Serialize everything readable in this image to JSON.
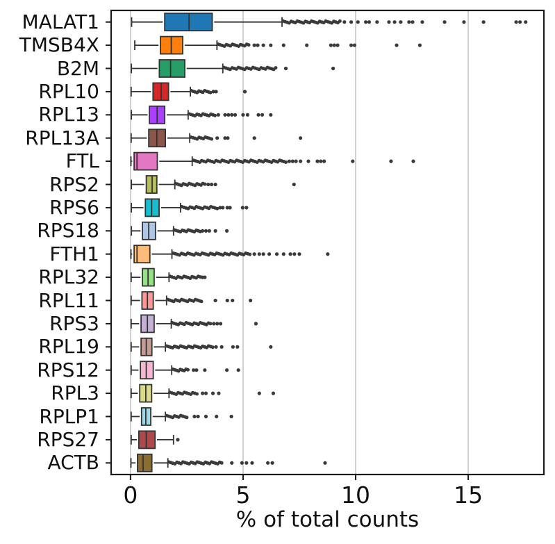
{
  "chart_data": {
    "type": "horizontal_boxplot",
    "title": "",
    "xlabel": "% of total counts",
    "ylabel": "",
    "xticks": [
      0,
      5,
      10,
      15
    ],
    "xtick_labels": [
      "0",
      "5",
      "10",
      "15"
    ],
    "xlim": [
      -0.86,
      18.36
    ],
    "grid": "vertical gridlines at each x tick",
    "legend": "none",
    "genes": [
      {
        "name": "MALAT1",
        "color": "#1f77b4",
        "whisker_low": 0.05,
        "q1": 1.52,
        "median": 2.6,
        "q3": 3.63,
        "whisker_high": 6.73,
        "outlier_band": [
          6.78,
          9.3
        ],
        "outliers": [
          9.5,
          9.8,
          10.1,
          10.45,
          10.6,
          10.95,
          11.48,
          11.73,
          12.0,
          12.37,
          12.53,
          12.96,
          13.95,
          14.81,
          15.68,
          17.13,
          17.3,
          17.55
        ]
      },
      {
        "name": "TMSB4X",
        "color": "#ff7f0e",
        "whisker_low": 0.19,
        "q1": 1.33,
        "median": 1.81,
        "q3": 2.32,
        "whisker_high": 3.84,
        "outlier_band": [
          3.9,
          5.25
        ],
        "outliers": [
          5.5,
          5.65,
          5.9,
          6.23,
          6.8,
          7.83,
          8.9,
          9.05,
          9.2,
          9.8,
          9.95,
          11.82,
          12.85
        ]
      },
      {
        "name": "B2M",
        "color": "#279e68",
        "whisker_low": 0.04,
        "q1": 1.28,
        "median": 1.78,
        "q3": 2.41,
        "whisker_high": 4.1,
        "outlier_band": [
          4.15,
          6.45
        ],
        "outliers": [
          6.9,
          9.0
        ]
      },
      {
        "name": "RPL10",
        "color": "#d62728",
        "whisker_low": 0.03,
        "q1": 1.0,
        "median": 1.36,
        "q3": 1.69,
        "whisker_high": 2.66,
        "outlier_band": [
          2.7,
          3.55
        ],
        "outliers": [
          3.68,
          3.8,
          5.08
        ]
      },
      {
        "name": "RPL13",
        "color": "#aa40fc",
        "whisker_low": 0.04,
        "q1": 0.84,
        "median": 1.18,
        "q3": 1.52,
        "whisker_high": 2.56,
        "outlier_band": [
          2.6,
          3.75
        ],
        "outliers": [
          3.9,
          4.2,
          4.35,
          4.5,
          4.65,
          5.0,
          5.2,
          5.68,
          5.85,
          6.23
        ]
      },
      {
        "name": "RPL13A",
        "color": "#8c564b",
        "whisker_low": 0.03,
        "q1": 0.81,
        "median": 1.17,
        "q3": 1.55,
        "whisker_high": 2.63,
        "outlier_band": [
          2.68,
          3.6
        ],
        "outliers": [
          3.85,
          4.2,
          4.32,
          5.5,
          7.55
        ]
      },
      {
        "name": "FTL",
        "color": "#e377c2",
        "whisker_low": 0.02,
        "q1": 0.16,
        "median": 0.29,
        "q3": 1.19,
        "whisker_high": 2.74,
        "outlier_band": [
          2.8,
          6.9
        ],
        "outliers": [
          7.05,
          7.2,
          7.35,
          7.55,
          7.9,
          8.3,
          8.45,
          8.6,
          9.87,
          11.57,
          12.56
        ]
      },
      {
        "name": "RPS2",
        "color": "#b5bd61",
        "whisker_low": 0.04,
        "q1": 0.7,
        "median": 0.96,
        "q3": 1.17,
        "whisker_high": 1.97,
        "outlier_band": [
          2.0,
          3.3
        ],
        "outliers": [
          3.45,
          3.6,
          3.77,
          7.26
        ]
      },
      {
        "name": "RPS6",
        "color": "#17becf",
        "whisker_low": 0.04,
        "q1": 0.66,
        "median": 0.94,
        "q3": 1.27,
        "whisker_high": 2.22,
        "outlier_band": [
          2.28,
          3.85
        ],
        "outliers": [
          3.98,
          4.1,
          4.3,
          4.42,
          4.98,
          5.15
        ]
      },
      {
        "name": "RPS18",
        "color": "#aec7e8",
        "whisker_low": 0.04,
        "q1": 0.53,
        "median": 0.81,
        "q3": 1.11,
        "whisker_high": 1.91,
        "outlier_band": [
          1.95,
          3.1
        ],
        "outliers": [
          3.2,
          3.35,
          3.5,
          3.77,
          4.28
        ]
      },
      {
        "name": "FTH1",
        "color": "#ffbb78",
        "whisker_low": 0.02,
        "q1": 0.16,
        "median": 0.29,
        "q3": 0.86,
        "whisker_high": 1.84,
        "outlier_band": [
          1.9,
          5.3
        ],
        "outliers": [
          5.5,
          5.72,
          5.9,
          6.16,
          6.5,
          6.8,
          7.1,
          7.28,
          7.5,
          8.76
        ]
      },
      {
        "name": "RPL32",
        "color": "#98df8a",
        "whisker_low": 0.03,
        "q1": 0.53,
        "median": 0.78,
        "q3": 1.05,
        "whisker_high": 1.71,
        "outlier_band": [
          1.75,
          3.1
        ],
        "outliers": [
          3.2,
          3.3
        ]
      },
      {
        "name": "RPL11",
        "color": "#ff9896",
        "whisker_low": 0.03,
        "q1": 0.51,
        "median": 0.75,
        "q3": 1.01,
        "whisker_high": 1.6,
        "outlier_band": [
          1.65,
          3.15
        ],
        "outliers": [
          3.77,
          4.3,
          4.53,
          5.33
        ]
      },
      {
        "name": "RPS3",
        "color": "#c5b0d5",
        "whisker_low": 0.03,
        "q1": 0.47,
        "median": 0.75,
        "q3": 1.05,
        "whisker_high": 1.81,
        "outlier_band": [
          1.85,
          3.55
        ],
        "outliers": [
          3.7,
          3.85,
          4.0,
          5.57
        ]
      },
      {
        "name": "RPL19",
        "color": "#c49c94",
        "whisker_low": 0.03,
        "q1": 0.47,
        "median": 0.7,
        "q3": 0.95,
        "whisker_high": 1.55,
        "outlier_band": [
          1.6,
          3.65
        ],
        "outliers": [
          3.8,
          4.05,
          4.55,
          4.75,
          6.23
        ]
      },
      {
        "name": "RPS12",
        "color": "#f7b6d2",
        "whisker_low": 0.03,
        "q1": 0.44,
        "median": 0.7,
        "q3": 1.01,
        "whisker_high": 1.83,
        "outlier_band": [
          1.88,
          2.55
        ],
        "outliers": [
          2.8,
          2.93,
          3.3,
          4.28,
          4.79
        ]
      },
      {
        "name": "RPL3",
        "color": "#dbdb8d",
        "whisker_low": 0.03,
        "q1": 0.41,
        "median": 0.68,
        "q3": 0.94,
        "whisker_high": 1.71,
        "outlier_band": [
          1.75,
          2.95
        ],
        "outliers": [
          3.2,
          3.35,
          3.66,
          3.92,
          5.72,
          6.34
        ]
      },
      {
        "name": "RPLP1",
        "color": "#9edae5",
        "whisker_low": 0.03,
        "q1": 0.49,
        "median": 0.68,
        "q3": 0.9,
        "whisker_high": 1.55,
        "outlier_band": [
          1.6,
          2.5
        ],
        "outliers": [
          2.84,
          3.0,
          3.35,
          3.82,
          4.48
        ]
      },
      {
        "name": "RPS27",
        "color": "#ad494a",
        "whisker_low": 0.03,
        "q1": 0.37,
        "median": 0.7,
        "q3": 1.09,
        "whisker_high": 1.91,
        "outlier_band": null,
        "outliers": [
          2.1
        ]
      },
      {
        "name": "ACTB",
        "color": "#8c6d31",
        "whisker_low": 0.02,
        "q1": 0.31,
        "median": 0.56,
        "q3": 0.95,
        "whisker_high": 1.66,
        "outlier_band": [
          1.7,
          4.05
        ],
        "outliers": [
          4.5,
          4.95,
          5.15,
          5.4,
          6.1,
          6.3,
          8.64
        ]
      }
    ],
    "style": {
      "box_edge_color": "#333333",
      "whisker_color": "#333333",
      "median_color": "#333333",
      "flier_color": "#3a3a3a",
      "grid_color": "#cccccc",
      "spine_color": "#1a1a1a",
      "background": "#ffffff"
    }
  }
}
